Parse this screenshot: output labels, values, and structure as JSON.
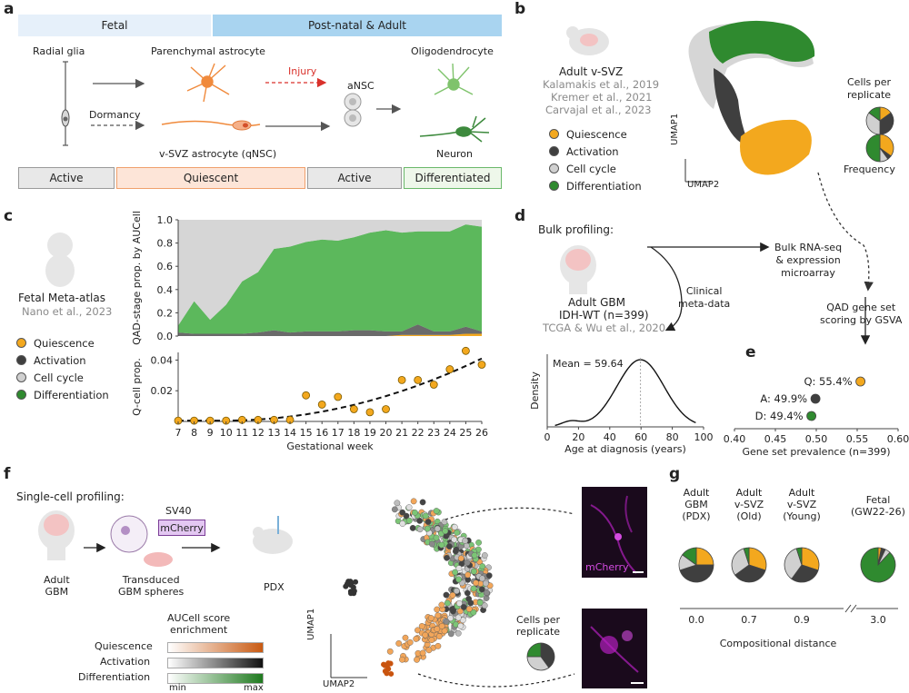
{
  "panel_labels": {
    "a": "a",
    "b": "b",
    "c": "c",
    "d": "d",
    "e": "e",
    "f": "f",
    "g": "g"
  },
  "a": {
    "header_left": "Fetal",
    "header_right": "Post-natal & Adult",
    "radial_glia": "Radial glia",
    "parenchymal": "Parenchymal astrocyte",
    "injury": "Injury",
    "ansc": "aNSC",
    "oligo": "Oligodendrocyte",
    "dormancy": "Dormancy",
    "vsvz_astro": "v-SVZ astrocyte (qNSC)",
    "neuron": "Neuron",
    "states": [
      "Active",
      "Quiescent",
      "Active",
      "Differentiated"
    ]
  },
  "b": {
    "title": "Adult v-SVZ",
    "refs": [
      "Kalamakis et al., 2019",
      "Kremer et al., 2021",
      "Carvajal et al., 2023"
    ],
    "legend": [
      "Quiescence",
      "Activation",
      "Cell cycle",
      "Differentiation"
    ],
    "umap1": "UMAP1",
    "umap2": "UMAP2",
    "cells_per_replicate": "Cells per\nreplicate",
    "frequency": "Frequency"
  },
  "colors": {
    "quiescence": "#f3a81e",
    "activation": "#3f3f3f",
    "cellcycle": "#d0d0d0",
    "differentiation": "#2f8a2f",
    "magenta": "#b41fbf"
  },
  "c": {
    "title": "Fetal Meta-atlas",
    "ref": "Nano et al., 2023",
    "legend": [
      "Quiescence",
      "Activation",
      "Cell cycle",
      "Differentiation"
    ]
  },
  "chart_data": [
    {
      "type": "area",
      "ylabel": "QAD-stage prop. by AUCell",
      "x": [
        7,
        8,
        9,
        10,
        11,
        12,
        13,
        14,
        15,
        16,
        17,
        18,
        19,
        20,
        21,
        22,
        23,
        24,
        25,
        26
      ],
      "ylim": [
        0,
        1.0
      ],
      "yticks": [
        "0.0",
        "0.2",
        "0.4",
        "0.6",
        "0.8",
        "1.0"
      ],
      "series": [
        {
          "name": "Quiescence",
          "values": [
            0,
            0,
            0,
            0,
            0,
            0,
            0,
            0,
            0,
            0,
            0,
            0,
            0,
            0,
            0.01,
            0.01,
            0.01,
            0.01,
            0.02,
            0.02
          ]
        },
        {
          "name": "Activation",
          "values": [
            0.03,
            0.02,
            0.02,
            0.02,
            0.02,
            0.03,
            0.05,
            0.03,
            0.04,
            0.04,
            0.04,
            0.05,
            0.05,
            0.04,
            0.03,
            0.09,
            0.03,
            0.03,
            0.06,
            0.02
          ]
        },
        {
          "name": "Differentiation",
          "values": [
            0.06,
            0.28,
            0.12,
            0.25,
            0.45,
            0.52,
            0.7,
            0.74,
            0.77,
            0.79,
            0.78,
            0.8,
            0.84,
            0.87,
            0.85,
            0.8,
            0.86,
            0.86,
            0.88,
            0.9
          ]
        },
        {
          "name": "Cell cycle",
          "values": [
            0.91,
            0.7,
            0.86,
            0.73,
            0.53,
            0.45,
            0.25,
            0.23,
            0.19,
            0.17,
            0.18,
            0.15,
            0.11,
            0.09,
            0.11,
            0.1,
            0.1,
            0.1,
            0.04,
            0.06
          ]
        }
      ]
    },
    {
      "type": "scatter",
      "ylabel": "Q-cell prop.",
      "xlabel": "Gestational week",
      "xticks": [
        "7",
        "8",
        "9",
        "10",
        "11",
        "12",
        "13",
        "14",
        "15",
        "16",
        "17",
        "18",
        "19",
        "20",
        "21",
        "22",
        "23",
        "24",
        "25",
        "26"
      ],
      "yticks": [
        "0.02",
        "0.04"
      ],
      "ylim": [
        0,
        0.045
      ],
      "x": [
        7,
        8,
        9,
        10,
        11,
        12,
        13,
        14,
        15,
        16,
        17,
        18,
        19,
        20,
        21,
        22,
        23,
        24,
        25,
        26
      ],
      "y": [
        0.0005,
        0.0005,
        0.0005,
        0.0005,
        0.001,
        0.001,
        0.001,
        0.001,
        0.017,
        0.011,
        0.016,
        0.008,
        0.006,
        0.008,
        0.027,
        0.027,
        0.024,
        0.034,
        0.046,
        0.037
      ]
    },
    {
      "type": "area",
      "title": "Mean = 59.64",
      "xlabel": "Age at diagnosis (years)",
      "ylabel": "Density",
      "xticks": [
        "0",
        "20",
        "40",
        "60",
        "80",
        "100"
      ],
      "xlim": [
        0,
        100
      ],
      "mean": 59.64
    },
    {
      "type": "scatter",
      "xlabel": "Gene set prevalence (n=399)",
      "xticks": [
        "0.40",
        "0.45",
        "0.50",
        "0.55",
        "0.60"
      ],
      "xlim": [
        0.4,
        0.6
      ],
      "points": [
        {
          "label": "Q: 55.4%",
          "value": 0.554
        },
        {
          "label": "A: 49.9%",
          "value": 0.499
        },
        {
          "label": "D: 49.4%",
          "value": 0.494
        }
      ]
    },
    {
      "type": "pie",
      "xlabel": "Compositional distance",
      "groups": [
        {
          "label": "Adult\nGBM\n(PDX)",
          "distance": "0.0",
          "slices": [
            0.25,
            0.45,
            0.15,
            0.15
          ]
        },
        {
          "label": "Adult\nv-SVZ\n(Old)",
          "distance": "0.7",
          "slices": [
            0.3,
            0.35,
            0.3,
            0.05
          ]
        },
        {
          "label": "Adult\nv-SVZ\n(Young)",
          "distance": "0.9",
          "slices": [
            0.3,
            0.3,
            0.35,
            0.05
          ]
        },
        {
          "label": "Fetal\n(GW22-26)",
          "distance": "3.0",
          "slices": [
            0.03,
            0.04,
            0.05,
            0.88
          ]
        }
      ]
    }
  ],
  "d": {
    "bulk_profiling": "Bulk profiling:",
    "bulk_rnaseq": "Bulk RNA-seq\n& expression\nmicroarray",
    "clinical": "Clinical\nmeta-data",
    "adult_gbm": "Adult GBM",
    "idh": "IDH-WT (n=399)",
    "ref": "TCGA & Wu et al., 2020",
    "qad": "QAD gene set\nscoring by GSVA"
  },
  "f": {
    "title": "Single-cell profiling:",
    "sv40": "SV40",
    "mcherry": "mCherry",
    "adult_gbm": "Adult\nGBM",
    "transduced": "Transduced\nGBM spheres",
    "pdx": "PDX",
    "aucell": "AUCell score\nenrichment",
    "score_rows": [
      "Quiescence",
      "Activation",
      "Differentiation"
    ],
    "min": "min",
    "max": "max",
    "umap1": "UMAP1",
    "umap2": "UMAP2",
    "cells_per_replicate": "Cells per\nreplicate",
    "img_label": "mCherry"
  }
}
